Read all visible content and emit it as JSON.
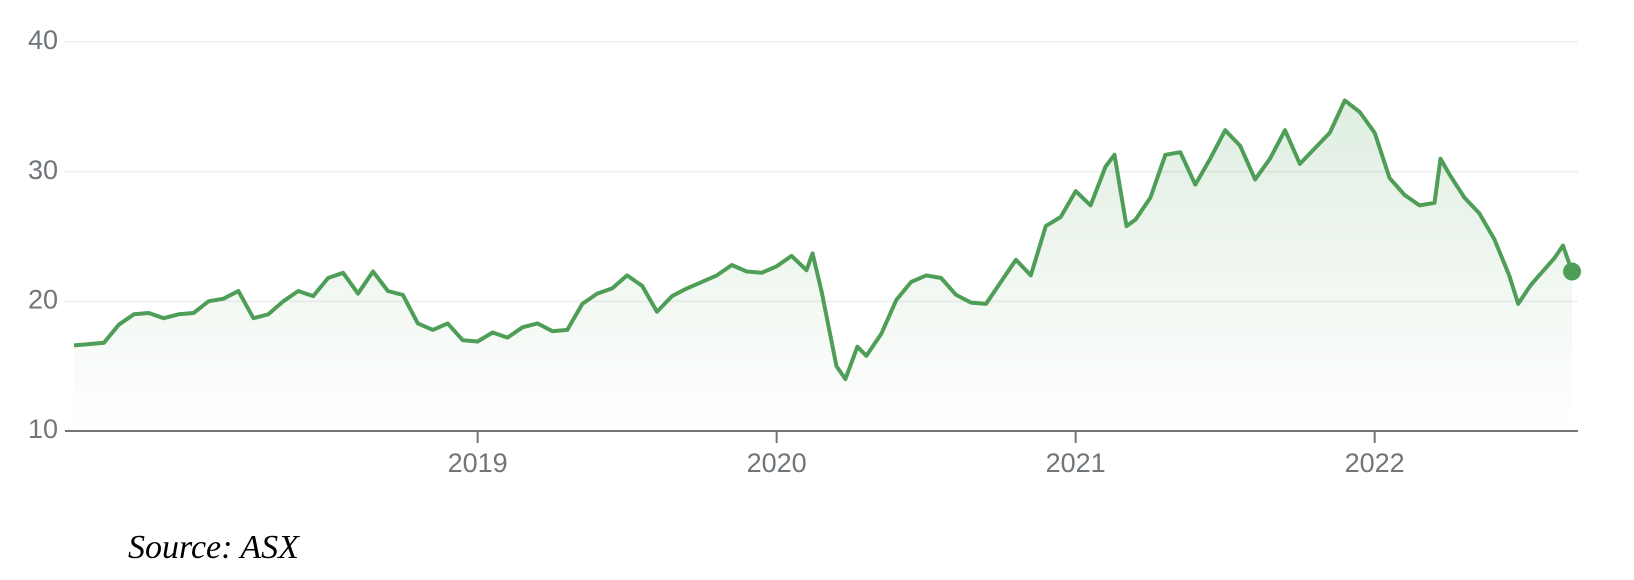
{
  "chart_data": {
    "type": "line",
    "x": [
      2017.65,
      2017.7,
      2017.75,
      2017.8,
      2017.85,
      2017.9,
      2017.95,
      2018.0,
      2018.05,
      2018.1,
      2018.15,
      2018.2,
      2018.25,
      2018.3,
      2018.35,
      2018.4,
      2018.45,
      2018.5,
      2018.55,
      2018.6,
      2018.65,
      2018.7,
      2018.75,
      2018.8,
      2018.85,
      2018.9,
      2018.95,
      2019.0,
      2019.05,
      2019.1,
      2019.15,
      2019.2,
      2019.25,
      2019.3,
      2019.35,
      2019.4,
      2019.45,
      2019.5,
      2019.55,
      2019.6,
      2019.65,
      2019.7,
      2019.75,
      2019.8,
      2019.85,
      2019.9,
      2019.95,
      2020.0,
      2020.05,
      2020.1,
      2020.12,
      2020.15,
      2020.2,
      2020.23,
      2020.27,
      2020.3,
      2020.35,
      2020.4,
      2020.45,
      2020.5,
      2020.55,
      2020.6,
      2020.65,
      2020.7,
      2020.75,
      2020.8,
      2020.85,
      2020.9,
      2020.95,
      2021.0,
      2021.05,
      2021.1,
      2021.13,
      2021.17,
      2021.2,
      2021.25,
      2021.3,
      2021.35,
      2021.4,
      2021.45,
      2021.5,
      2021.55,
      2021.6,
      2021.65,
      2021.7,
      2021.75,
      2021.8,
      2021.85,
      2021.9,
      2021.95,
      2022.0,
      2022.05,
      2022.1,
      2022.15,
      2022.2,
      2022.22,
      2022.25,
      2022.3,
      2022.35,
      2022.4,
      2022.45,
      2022.48,
      2022.52,
      2022.55,
      2022.6,
      2022.63,
      2022.66
    ],
    "series": [
      {
        "color": "#4f9e57",
        "values": [
          16.6,
          16.7,
          16.8,
          18.2,
          19.0,
          19.1,
          18.7,
          19.0,
          19.1,
          20.0,
          20.2,
          20.8,
          18.7,
          19.0,
          20.0,
          20.8,
          20.4,
          21.8,
          22.2,
          20.6,
          22.3,
          20.8,
          20.5,
          18.3,
          17.8,
          18.3,
          17.0,
          16.9,
          17.6,
          17.2,
          18.0,
          18.3,
          17.7,
          17.8,
          19.8,
          20.6,
          21.0,
          22.0,
          21.2,
          19.2,
          20.4,
          21.0,
          21.5,
          22.0,
          22.8,
          22.3,
          22.2,
          22.7,
          23.5,
          22.4,
          23.7,
          20.8,
          15.0,
          14.0,
          16.5,
          15.8,
          17.5,
          20.1,
          21.5,
          22.0,
          21.8,
          20.5,
          19.9,
          19.8,
          21.5,
          23.2,
          22.0,
          25.8,
          26.5,
          28.5,
          27.4,
          30.4,
          31.3,
          25.8,
          26.3,
          28.0,
          31.3,
          31.5,
          29.0,
          31.0,
          33.2,
          32.0,
          29.4,
          31.0,
          33.2,
          30.6,
          31.8,
          33.0,
          35.5,
          34.6,
          33.0,
          29.5,
          28.2,
          27.4,
          27.6,
          31.0,
          29.8,
          28.0,
          26.8,
          24.8,
          22.0,
          19.8,
          21.2,
          22.0,
          23.3,
          24.3,
          22.3
        ]
      }
    ],
    "xlim": [
      2017.62,
      2022.68
    ],
    "xticks": [
      2019,
      2020,
      2021,
      2022
    ],
    "ylim": [
      10,
      40
    ],
    "yticks": [
      10,
      20,
      30,
      40
    ],
    "grid": true,
    "source": "Source: ASX"
  }
}
